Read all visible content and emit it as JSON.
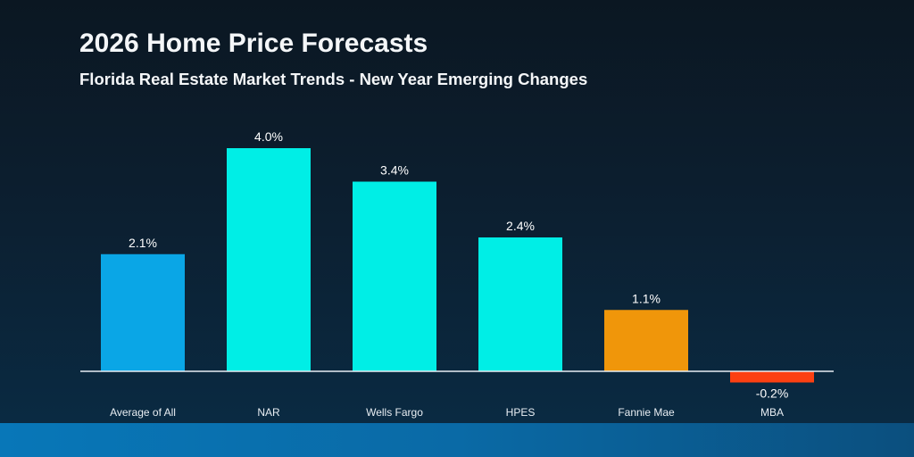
{
  "chart_data": {
    "type": "bar",
    "title": "2026 Home Price Forecasts",
    "subtitle": "Florida Real Estate Market Trends - New Year Emerging Changes",
    "categories": [
      "Average of All",
      "NAR",
      "Wells Fargo",
      "HPES",
      "Fannie Mae",
      "MBA"
    ],
    "values": [
      2.1,
      4.0,
      3.4,
      2.4,
      1.1,
      -0.2
    ],
    "data_labels": [
      "2.1%",
      "4.0%",
      "3.4%",
      "2.4%",
      "1.1%",
      "-0.2%"
    ],
    "colors": [
      "#0aa6e6",
      "#00eee6",
      "#00eee6",
      "#00eee6",
      "#f0960a",
      "#fc4012"
    ],
    "xlabel": "",
    "ylabel": "",
    "unit": "%",
    "grid": false,
    "legend": "none"
  }
}
